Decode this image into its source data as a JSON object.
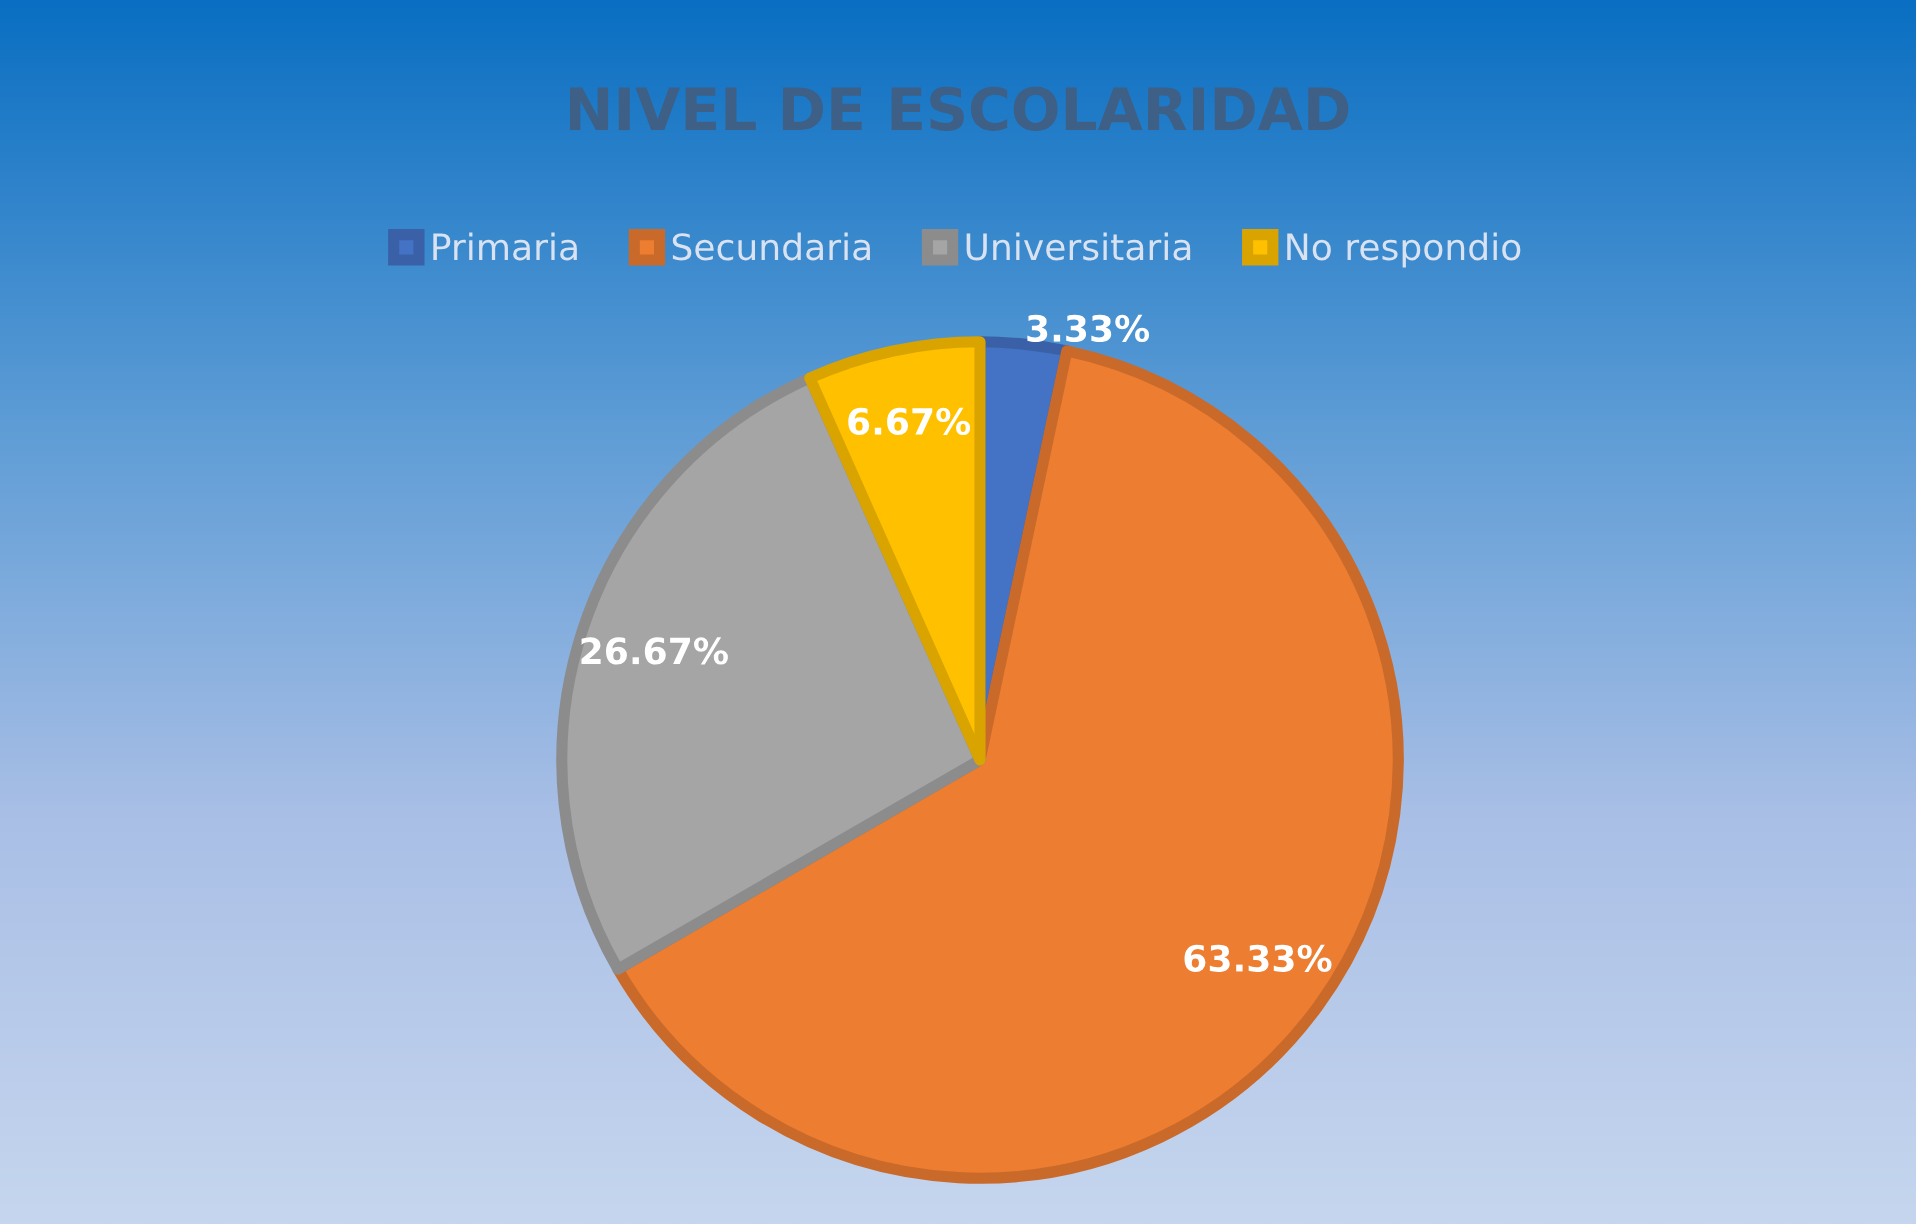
{
  "chart_data": {
    "type": "pie",
    "title": "NIVEL DE ESCOLARIDAD",
    "categories": [
      "Primaria",
      "Secundaria",
      "Universitaria",
      "No respondio"
    ],
    "values": [
      3.33,
      63.33,
      26.67,
      6.67
    ],
    "colors": [
      "#4472c4",
      "#ed7d31",
      "#a5a5a5",
      "#ffc000"
    ],
    "value_labels": [
      "3.33%",
      "63.33%",
      "26.67%",
      "6.67%"
    ],
    "legend": "top"
  }
}
